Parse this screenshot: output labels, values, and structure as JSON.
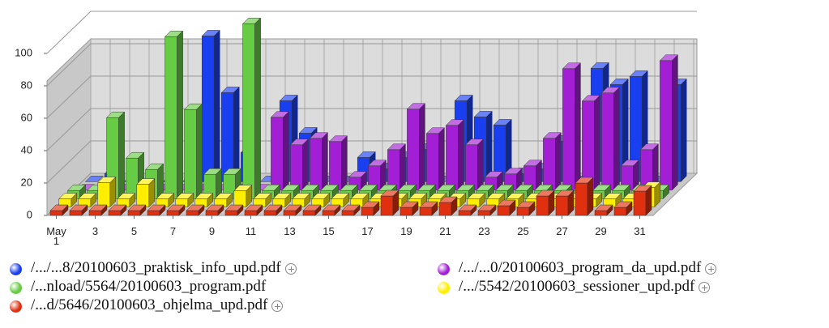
{
  "chart_data": {
    "type": "bar3d",
    "categories": [
      "May 1",
      null,
      "3",
      null,
      "5",
      null,
      "7",
      null,
      "9",
      null,
      "11",
      null,
      "13",
      null,
      "15",
      null,
      "17",
      null,
      "19",
      null,
      "21",
      null,
      "23",
      null,
      "25",
      null,
      "27",
      null,
      "29",
      null,
      "31"
    ],
    "ylim": [
      0,
      100
    ],
    "yticks": [
      0,
      20,
      40,
      60,
      80,
      100
    ],
    "grid": true,
    "series": [
      {
        "name": "/.../...8/20100603_praktisk_info_upd.pdf",
        "color": "#1a3ff0",
        "values": [
          0,
          5,
          0,
          0,
          0,
          0,
          90,
          55,
          18,
          0,
          50,
          30,
          0,
          0,
          15,
          8,
          15,
          20,
          0,
          50,
          40,
          35,
          5,
          8,
          25,
          0,
          70,
          60,
          65,
          0,
          60
        ]
      },
      {
        "name": "/.../...0/20100603_program_da_upd.pdf",
        "color": "#a21fd6",
        "values": [
          0,
          0,
          0,
          0,
          0,
          0,
          0,
          0,
          0,
          0,
          45,
          28,
          32,
          30,
          8,
          15,
          25,
          50,
          35,
          40,
          28,
          8,
          10,
          15,
          32,
          75,
          55,
          60,
          15,
          25,
          80
        ]
      },
      {
        "name": "/...nload/5564/20100603_program.pdf",
        "color": "#66cc44",
        "values": [
          5,
          5,
          50,
          25,
          18,
          100,
          55,
          15,
          15,
          108,
          5,
          5,
          5,
          5,
          5,
          5,
          5,
          5,
          5,
          5,
          5,
          5,
          5,
          5,
          5,
          5,
          5,
          5,
          5,
          5,
          5
        ]
      },
      {
        "name": "/.../5542/20100603_sessioner_upd.pdf",
        "color": "#ffee00",
        "values": [
          5,
          5,
          15,
          5,
          14,
          5,
          5,
          5,
          5,
          10,
          5,
          5,
          5,
          5,
          5,
          5,
          5,
          5,
          5,
          5,
          5,
          5,
          5,
          5,
          5,
          5,
          5,
          5,
          5,
          5,
          12
        ]
      },
      {
        "name": "/...d/5646/20100603_ohjelma_upd.pdf",
        "color": "#e0300f",
        "values": [
          3,
          3,
          3,
          3,
          3,
          3,
          3,
          3,
          3,
          3,
          3,
          3,
          3,
          3,
          3,
          3,
          5,
          12,
          5,
          5,
          8,
          3,
          3,
          6,
          5,
          12,
          12,
          20,
          3,
          5,
          15
        ]
      }
    ]
  }
}
